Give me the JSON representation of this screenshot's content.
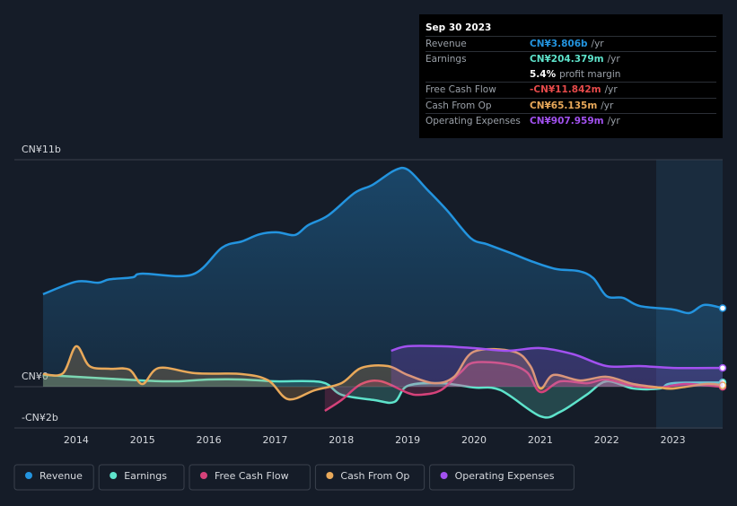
{
  "chart_data": {
    "type": "line",
    "xlim": [
      2013,
      2023.75
    ],
    "xticks": [
      2014,
      2015,
      2016,
      2017,
      2018,
      2019,
      2020,
      2021,
      2022,
      2023
    ],
    "ylim": [
      -2,
      11
    ],
    "yticks": [
      {
        "value": -2,
        "label": "-CN¥2b"
      },
      {
        "value": 0,
        "label": "CN¥0"
      },
      {
        "value": 11,
        "label": "CN¥11b"
      }
    ],
    "series": [
      {
        "name": "Revenue",
        "color": "#2394df",
        "x": [
          2013.5,
          2014,
          2014.33,
          2014.5,
          2014.85,
          2015,
          2015.75,
          2016.2,
          2016.5,
          2016.77,
          2017.04,
          2017.3,
          2017.5,
          2017.8,
          2018.2,
          2018.47,
          2018.8,
          2019,
          2019.28,
          2019.6,
          2019.95,
          2020.2,
          2020.55,
          2020.9,
          2021.24,
          2021.58,
          2021.8,
          2022,
          2022.25,
          2022.5,
          2023,
          2023.25,
          2023.47,
          2023.75
        ],
        "values": [
          4.48,
          5.09,
          5.04,
          5.2,
          5.3,
          5.48,
          5.43,
          6.74,
          7.04,
          7.39,
          7.48,
          7.35,
          7.83,
          8.3,
          9.39,
          9.78,
          10.48,
          10.52,
          9.6,
          8.52,
          7.2,
          6.9,
          6.48,
          6.04,
          5.7,
          5.6,
          5.26,
          4.39,
          4.3,
          3.91,
          3.74,
          3.57,
          3.96,
          3.806
        ]
      },
      {
        "name": "Earnings",
        "color": "#5ee3cb",
        "x": [
          2013.5,
          2014,
          2015,
          2015.5,
          2016,
          2016.5,
          2017,
          2017.7,
          2018,
          2018.5,
          2018.8,
          2019,
          2019.5,
          2020,
          2020.4,
          2021,
          2021.3,
          2021.7,
          2022,
          2022.4,
          2022.8,
          2023,
          2023.75
        ],
        "values": [
          0.57,
          0.48,
          0.3,
          0.26,
          0.35,
          0.35,
          0.26,
          0.22,
          -0.39,
          -0.65,
          -0.74,
          0.04,
          0.17,
          -0.04,
          -0.17,
          -1.43,
          -1.22,
          -0.39,
          0.26,
          -0.09,
          -0.09,
          0.17,
          0.204
        ]
      },
      {
        "name": "Free Cash Flow",
        "color": "#d6427a",
        "x": [
          2017.75,
          2018,
          2018.3,
          2018.6,
          2019,
          2019.2,
          2019.5,
          2019.8,
          2020,
          2020.5,
          2020.8,
          2021,
          2021.3,
          2021.7,
          2022,
          2022.4,
          2022.8,
          2023.2,
          2023.75
        ],
        "values": [
          -1.17,
          -0.65,
          0.13,
          0.26,
          -0.3,
          -0.39,
          -0.17,
          0.7,
          1.17,
          1.09,
          0.7,
          -0.26,
          0.26,
          0.17,
          0.35,
          0.04,
          -0.04,
          0.13,
          -0.0118
        ]
      },
      {
        "name": "Cash From Op",
        "color": "#e9a95a",
        "x": [
          2013.5,
          2013.8,
          2014,
          2014.2,
          2014.5,
          2014.8,
          2015,
          2015.25,
          2015.8,
          2016.5,
          2016.9,
          2017.2,
          2017.6,
          2018,
          2018.3,
          2018.7,
          2019,
          2019.4,
          2019.7,
          2020,
          2020.6,
          2020.85,
          2021,
          2021.2,
          2021.6,
          2022,
          2022.4,
          2022.8,
          2023,
          2023.5,
          2023.75
        ],
        "values": [
          0.61,
          0.65,
          1.96,
          1.0,
          0.87,
          0.83,
          0.13,
          0.91,
          0.65,
          0.61,
          0.3,
          -0.61,
          -0.17,
          0.17,
          0.91,
          1.0,
          0.57,
          0.17,
          0.48,
          1.7,
          1.7,
          1.0,
          -0.09,
          0.57,
          0.3,
          0.48,
          0.13,
          -0.04,
          -0.09,
          0.13,
          0.065
        ]
      },
      {
        "name": "Operating Expenses",
        "color": "#a251f0",
        "x": [
          2018.75,
          2019,
          2019.5,
          2020,
          2020.5,
          2021,
          2021.5,
          2022,
          2022.5,
          2023,
          2023.75
        ],
        "values": [
          1.74,
          1.96,
          1.96,
          1.87,
          1.74,
          1.87,
          1.57,
          1.0,
          1.0,
          0.91,
          0.908
        ]
      }
    ]
  },
  "tooltip": {
    "date": "Sep 30 2023",
    "rows": [
      {
        "label": "Revenue",
        "value": "CN¥3.806b",
        "suffix": "/yr",
        "color": "#2394df"
      },
      {
        "label": "Earnings",
        "value": "CN¥204.379m",
        "suffix": "/yr",
        "color": "#5ee3cb"
      },
      {
        "label": null,
        "value": "5.4%",
        "suffix": "profit margin",
        "color": "#ffffff"
      },
      {
        "label": "Free Cash Flow",
        "value": "-CN¥11.842m",
        "suffix": "/yr",
        "color": "#e64a4a"
      },
      {
        "label": "Cash From Op",
        "value": "CN¥65.135m",
        "suffix": "/yr",
        "color": "#e9a95a"
      },
      {
        "label": "Operating Expenses",
        "value": "CN¥907.959m",
        "suffix": "/yr",
        "color": "#a251f0"
      }
    ]
  }
}
